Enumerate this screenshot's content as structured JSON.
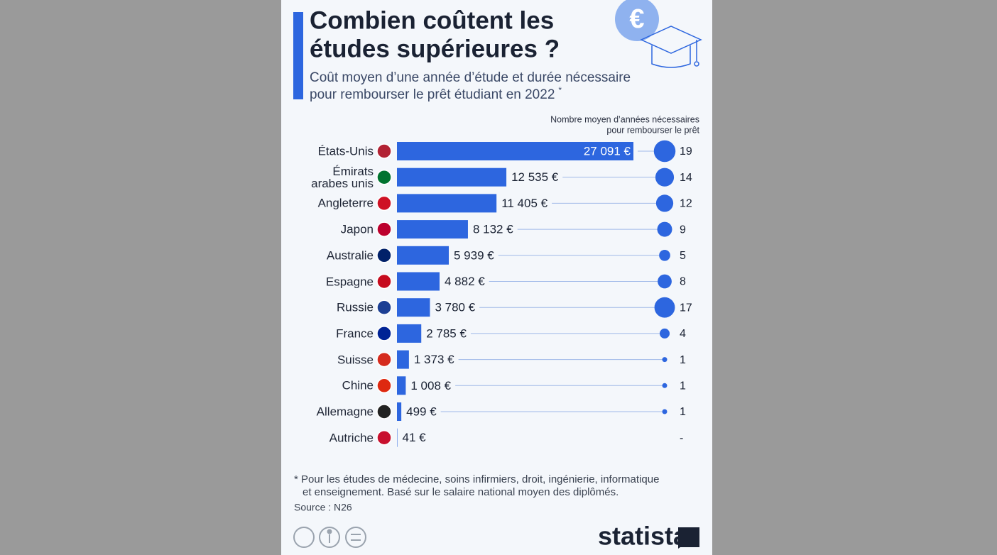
{
  "chart_data": {
    "type": "bar",
    "title": "Combien coûtent les études supérieures ?",
    "subtitle": "Coût moyen d’une année d’étude et durée nécessaire pour rembourser le prêt étudiant en 2022",
    "subtitle_mark": "*",
    "y2_label": "Nombre moyen d’années nécessaires pour rembourser le prêt",
    "categories": [
      "États-Unis",
      "Émirats arabes unis",
      "Angleterre",
      "Japon",
      "Australie",
      "Espagne",
      "Russie",
      "France",
      "Suisse",
      "Chine",
      "Allemagne",
      "Autriche"
    ],
    "series": [
      {
        "name": "Coût moyen d’une année d’étude",
        "color": "#2d66df",
        "values": [
          27091,
          12535,
          11405,
          8132,
          5939,
          4882,
          3780,
          2785,
          1373,
          1008,
          499,
          41
        ],
        "value_labels": [
          "27 091 €",
          "12 535 €",
          "11 405 €",
          "8 132 €",
          "5 939 €",
          "4 882 €",
          "3 780 €",
          "2 785 €",
          "1 373 €",
          "1 008 €",
          "499 €",
          "41 €"
        ]
      },
      {
        "name": "Nombre moyen d’années nécessaires pour rembourser le prêt",
        "color": "#2d66df",
        "values": [
          19,
          14,
          12,
          9,
          5,
          8,
          17,
          4,
          1,
          1,
          1,
          null
        ],
        "value_labels": [
          "19",
          "14",
          "12",
          "9",
          "5",
          "8",
          "17",
          "4",
          "1",
          "1",
          "1",
          "-"
        ]
      }
    ],
    "note": "* Pour les études de médecine, soins infirmiers, droit, ingénierie, informatique et enseignement. Basé sur le salaire national moyen des diplômés.",
    "source": "Source : N26",
    "brand": "statista"
  }
}
